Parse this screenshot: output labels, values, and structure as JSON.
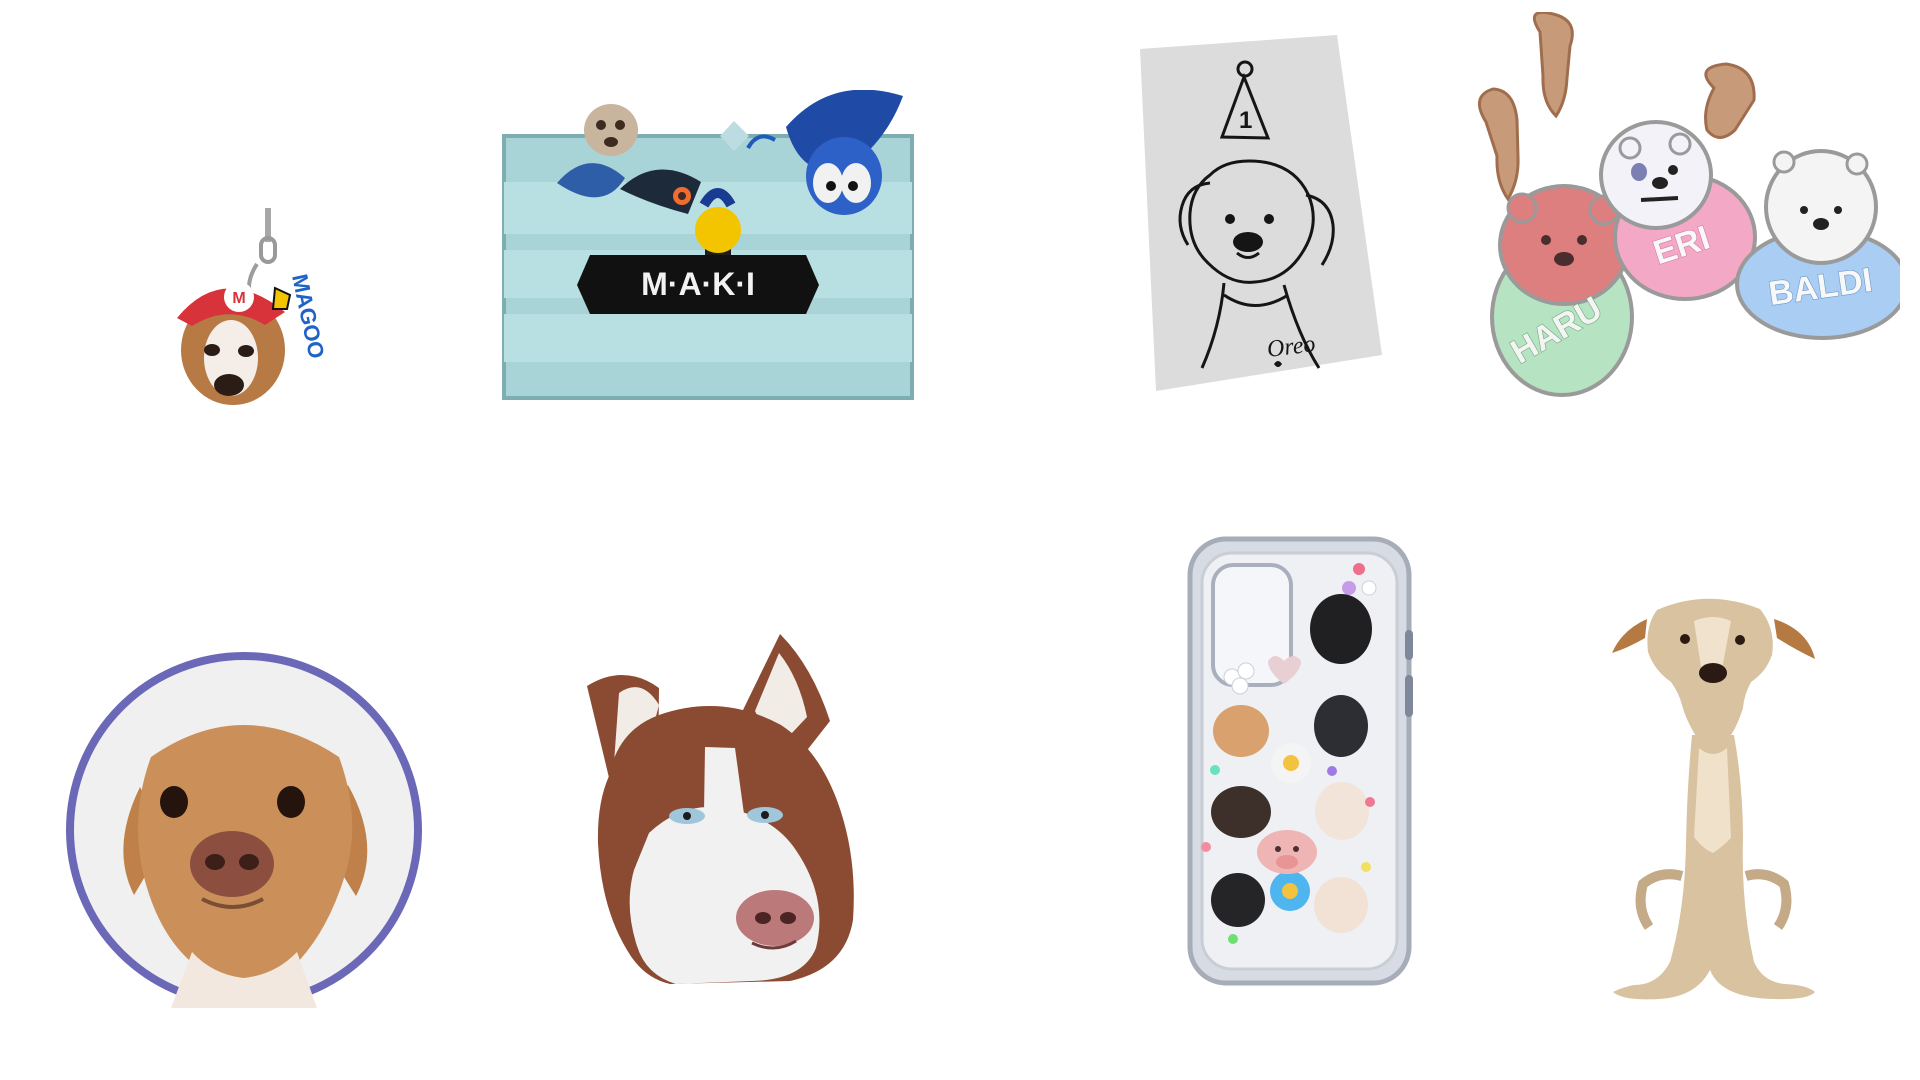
{
  "items": {
    "keychain_dog": {
      "brand_text": "MAGOO",
      "colors": {
        "cap": "#d8333b",
        "dog": "#b97a45",
        "letters": "#1e63c8",
        "star": "#f5c400"
      }
    },
    "toy_crate": {
      "label_text": "M·A·K·I",
      "colors": {
        "crate": "#a7d3d6",
        "label": "#111111",
        "ball": "#f2c500",
        "plush": "#1f4aa6"
      }
    },
    "sketch_card": {
      "signature": "Oreo",
      "hat_number": "1",
      "colors": {
        "paper": "#d8d8d8",
        "ink": "#151515"
      }
    },
    "bear_tags": {
      "tags": [
        {
          "name": "HARU",
          "color": "#b6e3c2"
        },
        {
          "name": "ERI",
          "color": "#f3a9c6"
        },
        {
          "name": "BALDI",
          "color": "#a9cdf3"
        }
      ],
      "colors": {
        "clasp": "#c79b7a",
        "face_haru": "#de7f7f",
        "face_eri": "#f2f2f8",
        "face_baldi": "#f4f4f4"
      }
    },
    "round_dog_sticker": {
      "colors": {
        "ring": "#6a68b7",
        "fur": "#c98e56",
        "bg": "#f0f0f0"
      }
    },
    "husky_sticker": {
      "colors": {
        "fur": "#8b4b32",
        "white": "#f1f1f1",
        "eyes": "#9fc6da"
      }
    },
    "phone_case": {
      "colors": {
        "case": "#d7dbe3",
        "accent_heart": "#e7cfd4",
        "flower": "#f4f4f4",
        "pig": "#efb4b4"
      }
    },
    "sitting_dog": {
      "colors": {
        "fur": "#d8c2a0",
        "ears": "#b57a42"
      }
    }
  }
}
